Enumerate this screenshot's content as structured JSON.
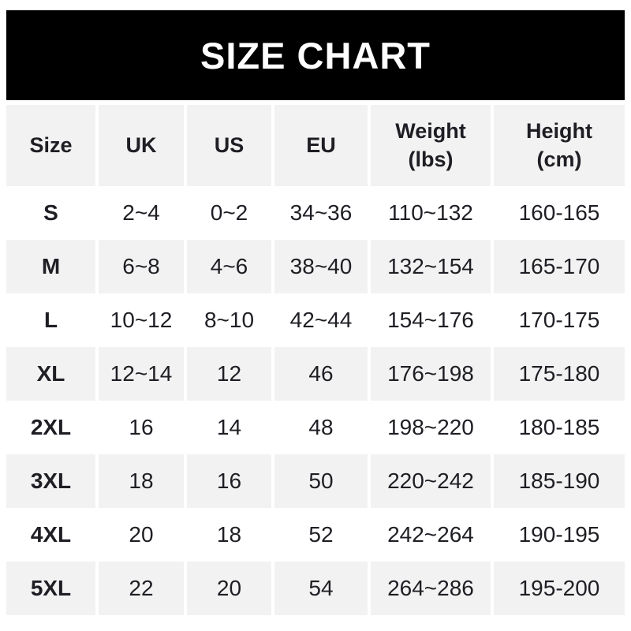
{
  "title": "SIZE CHART",
  "colors": {
    "banner_bg": "#000000",
    "banner_text": "#ffffff",
    "row_alt_bg": "#f2f2f2",
    "row_bg": "#ffffff",
    "text": "#1e1e24"
  },
  "table": {
    "columns": [
      "Size",
      "UK",
      "US",
      "EU",
      "Weight\n(lbs)",
      "Height\n(cm)"
    ],
    "rows": [
      {
        "size": "S",
        "uk": "2~4",
        "us": "0~2",
        "eu": "34~36",
        "weight": "110~132",
        "height": "160-165"
      },
      {
        "size": "M",
        "uk": "6~8",
        "us": "4~6",
        "eu": "38~40",
        "weight": "132~154",
        "height": "165-170"
      },
      {
        "size": "L",
        "uk": "10~12",
        "us": "8~10",
        "eu": "42~44",
        "weight": "154~176",
        "height": "170-175"
      },
      {
        "size": "XL",
        "uk": "12~14",
        "us": "12",
        "eu": "46",
        "weight": "176~198",
        "height": "175-180"
      },
      {
        "size": "2XL",
        "uk": "16",
        "us": "14",
        "eu": "48",
        "weight": "198~220",
        "height": "180-185"
      },
      {
        "size": "3XL",
        "uk": "18",
        "us": "16",
        "eu": "50",
        "weight": "220~242",
        "height": "185-190"
      },
      {
        "size": "4XL",
        "uk": "20",
        "us": "18",
        "eu": "52",
        "weight": "242~264",
        "height": "190-195"
      },
      {
        "size": "5XL",
        "uk": "22",
        "us": "20",
        "eu": "54",
        "weight": "264~286",
        "height": "195-200"
      }
    ]
  }
}
